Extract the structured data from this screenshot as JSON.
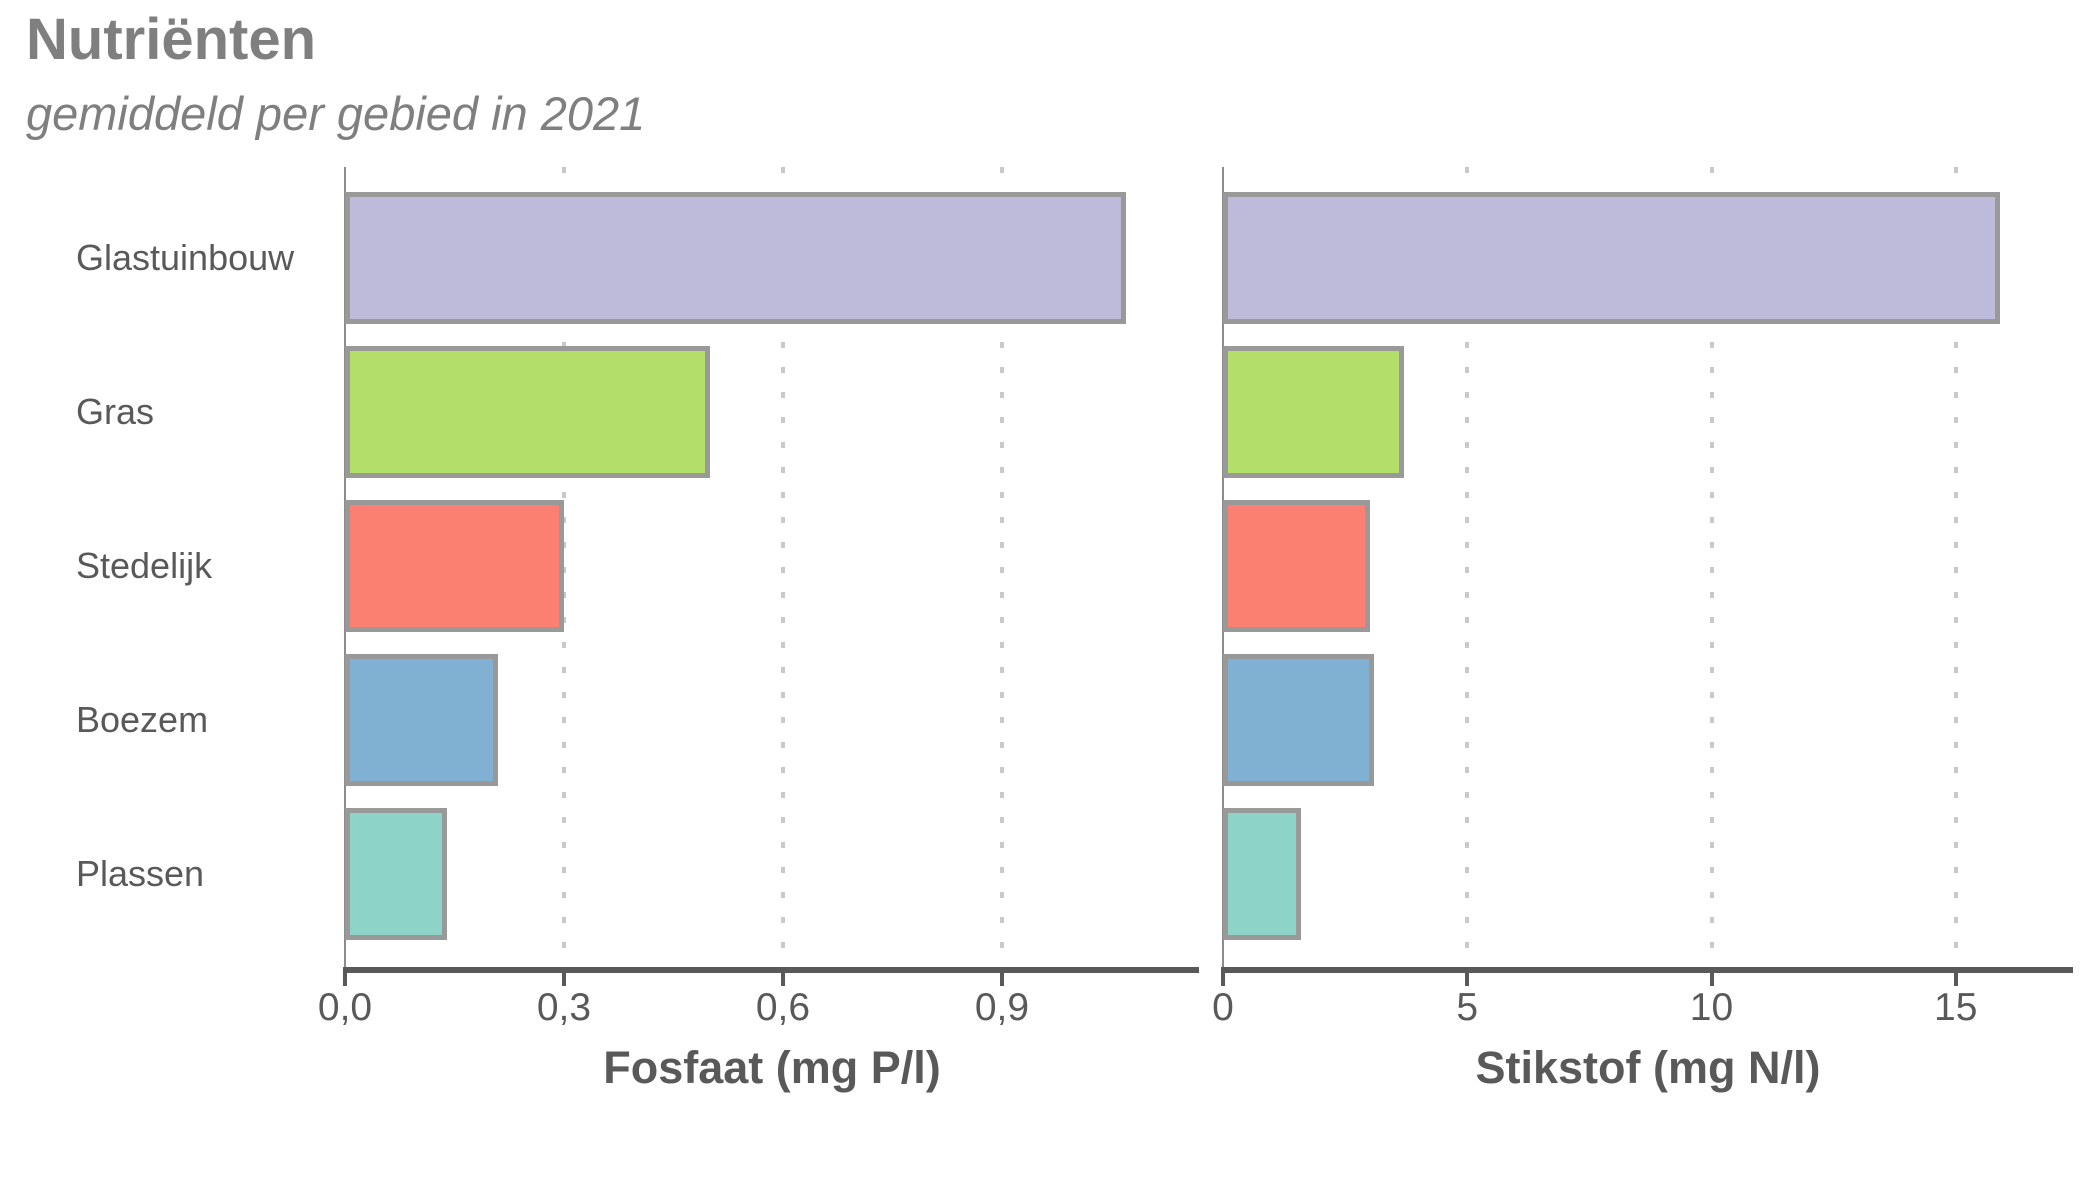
{
  "header": {
    "title": "Nutriënten",
    "subtitle": "gemiddeld per gebied in 2021"
  },
  "categories": [
    "Glastuinbouw",
    "Gras",
    "Stedelijk",
    "Boezem",
    "Plassen"
  ],
  "colors": {
    "bar_fill": [
      "#bebada",
      "#b3de69",
      "#fb8072",
      "#80b1d3",
      "#8dd3c7"
    ],
    "bar_border": "#999999",
    "axis_line": "#595959",
    "grid_line": "#c9c9c9",
    "title_text": "#7f7f7f",
    "label_text": "#595959",
    "background": "#ffffff"
  },
  "chart_data": [
    {
      "type": "bar",
      "orientation": "horizontal",
      "xlabel": "Fosfaat (mg P/l)",
      "categories": [
        "Glastuinbouw",
        "Gras",
        "Stedelijk",
        "Boezem",
        "Plassen"
      ],
      "values": [
        1.07,
        0.5,
        0.3,
        0.21,
        0.14
      ],
      "xlim": [
        0,
        1.17
      ],
      "xticks": [
        0,
        0.3,
        0.6,
        0.9
      ],
      "xtick_labels": [
        "0,0",
        "0,3",
        "0,6",
        "0,9"
      ],
      "grid": "vertical-dotted",
      "legend": "none"
    },
    {
      "type": "bar",
      "orientation": "horizontal",
      "xlabel": "Stikstof (mg N/l)",
      "categories": [
        "Glastuinbouw",
        "Gras",
        "Stedelijk",
        "Boezem",
        "Plassen"
      ],
      "values": [
        15.9,
        3.7,
        3.0,
        3.1,
        1.6
      ],
      "xlim": [
        0,
        17.4
      ],
      "xticks": [
        0,
        5,
        10,
        15
      ],
      "xtick_labels": [
        "0",
        "5",
        "10",
        "15"
      ],
      "grid": "vertical-dotted",
      "legend": "none"
    }
  ]
}
